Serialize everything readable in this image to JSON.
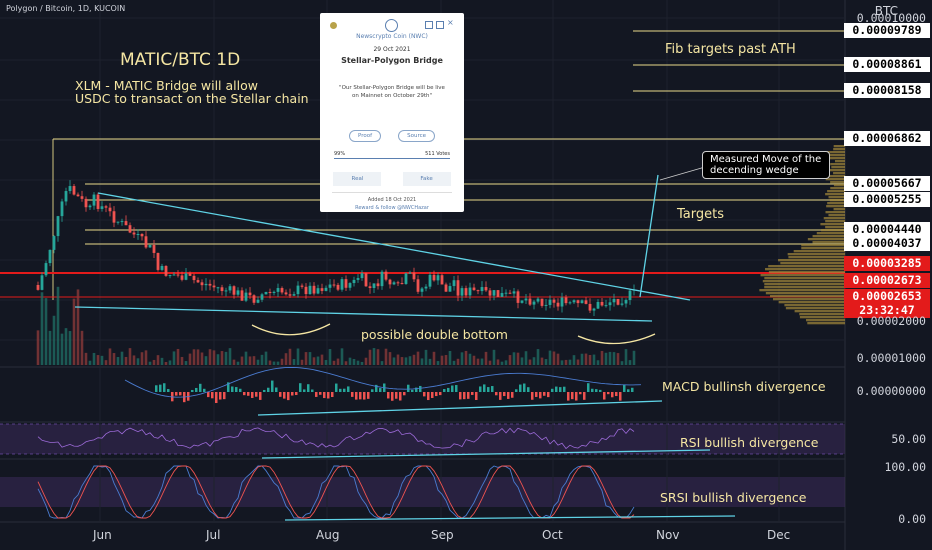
{
  "header": {
    "symbol": "Polygon / Bitcoin, 1D, KUCOIN"
  },
  "axis_unit": "BTC",
  "price_labels": [
    {
      "text": "0.00010000",
      "kind": "tick"
    },
    {
      "text": "0.00009789",
      "kind": "fib"
    },
    {
      "text": "0.00008861",
      "kind": "fib"
    },
    {
      "text": "0.00008158",
      "kind": "fib"
    },
    {
      "text": "0.00006862",
      "kind": "fib"
    },
    {
      "text": "0.00005667",
      "kind": "target"
    },
    {
      "text": "0.00005255",
      "kind": "target"
    },
    {
      "text": "0.00004440",
      "kind": "target"
    },
    {
      "text": "0.00004037",
      "kind": "target"
    },
    {
      "text": "0.00003285",
      "kind": "red"
    },
    {
      "text": "0.00002673",
      "kind": "red"
    },
    {
      "text": "0.00002653",
      "kind": "red"
    },
    {
      "text": "23:32:47",
      "kind": "red"
    },
    {
      "text": "0.00002000",
      "kind": "tick"
    },
    {
      "text": "0.00001000",
      "kind": "tick"
    }
  ],
  "indicator_labels": {
    "macd_zero": "0.00000000",
    "rsi_50": "50.00",
    "srsi_100": "100.00",
    "srsi_0": "0.00"
  },
  "x_labels": [
    "Jun",
    "Jul",
    "Aug",
    "Sep",
    "Oct",
    "Nov",
    "Dec"
  ],
  "annotations": {
    "title": "MATIC/BTC 1D",
    "bridge_line1": "XLM - MATIC Bridge will allow",
    "bridge_line2": "USDC to transact on the Stellar chain",
    "fib": "Fib targets past ATH",
    "targets": "Targets",
    "double_bottom": "possible double bottom",
    "macd": "MACD bullinsh divergence",
    "rsi": "RSI bullish divergence",
    "srsi": "SRSI bullish divergence",
    "measure_line1": "Measured Move of the",
    "measure_line2": "decending wedge"
  },
  "card": {
    "source": "Newscrypto Coin (NWC)",
    "date": "29 Oct 2021",
    "title": "Stellar-Polygon Bridge",
    "quote": "\"Our Stellar-Polygon Bridge will be live on Mainnet on October 29th\"",
    "proof": "Proof",
    "source_btn": "Source",
    "percent": "99%",
    "votes": "511 Votes",
    "real": "Real",
    "fake": "Fake",
    "added": "Added 18 Oct 2021",
    "reward": "Reward & follow @NWCHazar"
  },
  "colors": {
    "background": "#131722",
    "up": "#26a69a",
    "down": "#ef5350",
    "annotation": "#f5e6a3",
    "wedge": "#5fd3e6",
    "red_level": "#e31b1b",
    "rsi_band": "#7e57c2"
  },
  "chart_data": {
    "type": "candlestick",
    "x": [
      "Jun",
      "Jul",
      "Aug",
      "Sep",
      "Oct",
      "Nov",
      "Dec"
    ],
    "horizontal_levels": [
      9.789e-05,
      8.861e-05,
      8.158e-05,
      6.862e-05,
      5.667e-05,
      5.255e-05,
      4.44e-05,
      4.037e-05,
      3.285e-05,
      2.673e-05,
      2.653e-05
    ],
    "approx_range": [
      8e-06,
      0.0001
    ],
    "last_price": 2.653e-05,
    "panels": [
      "price",
      "MACD",
      "RSI",
      "Stochastic RSI"
    ],
    "wedge": "descending",
    "grid": true
  }
}
